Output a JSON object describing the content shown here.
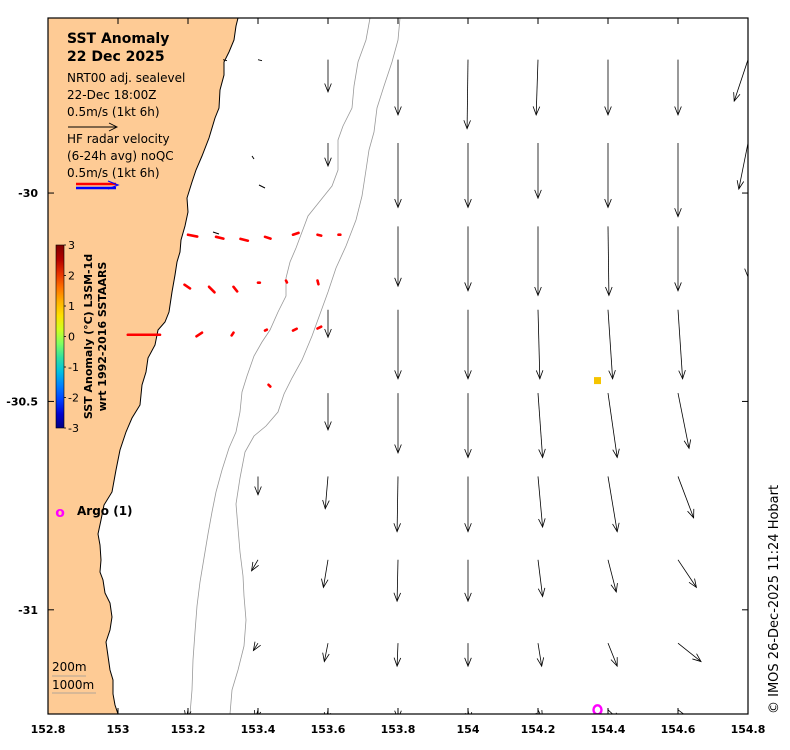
{
  "title": {
    "line1": "SST Anomaly",
    "line2": "22 Dec 2025"
  },
  "legend": {
    "sealevel_title": "NRT00 adj. sealevel",
    "sealevel_time": "22-Dec 18:00Z",
    "sealevel_scale": "0.5m/s (1kt 6h)",
    "radar_title": "HF radar velocity",
    "radar_avg": "(6-24h avg) noQC",
    "radar_scale": "0.5m/s (1kt 6h)"
  },
  "colorbar": {
    "label_line1": "SST Anomaly (°C) L3SM-1d",
    "label_line2": "wrt 1992-2016 SSTAARS",
    "ticks": [
      "3",
      "2",
      "1",
      "0",
      "-1",
      "-2",
      "-3"
    ],
    "colors": [
      "#800000",
      "#b30000",
      "#e63000",
      "#ff7000",
      "#ffb000",
      "#ffe000",
      "#d0ff20",
      "#80ff60",
      "#30e0a0",
      "#00c0e0",
      "#0080ff",
      "#0040ff",
      "#0000d0",
      "#000080"
    ]
  },
  "argo": {
    "label": "Argo (1)"
  },
  "depth_legend": {
    "line1": "200m",
    "line2": "1000m"
  },
  "axes": {
    "x_ticks": [
      "152.8",
      "153",
      "153.2",
      "153.4",
      "153.6",
      "153.8",
      "154",
      "154.2",
      "154.4",
      "154.6",
      "154.8"
    ],
    "y_ticks": [
      "-30",
      "-30.5",
      "-31"
    ]
  },
  "credit": "© IMOS 26-Dec-2025 11:24 Hobart",
  "colors": {
    "land": "#fecb95",
    "arrow": "#000000",
    "radar": "#ff0000",
    "argo": "#ff00ff",
    "sst_point": "#f5c400",
    "contour": "#999999"
  },
  "chart_data": {
    "type": "vector-map",
    "xlim": [
      152.8,
      154.8
    ],
    "ylim": [
      -31.25,
      -29.58
    ],
    "sealevel_vectors": [
      {
        "lon": 153.3,
        "lat": -29.68,
        "u": 0.0,
        "v": 0.0
      },
      {
        "lon": 153.4,
        "lat": -29.68,
        "u": 0.0,
        "v": 0.0
      },
      {
        "lon": 153.6,
        "lat": -29.68,
        "u": 0.0,
        "v": -0.35
      },
      {
        "lon": 153.8,
        "lat": -29.68,
        "u": 0.0,
        "v": -0.6
      },
      {
        "lon": 154.0,
        "lat": -29.68,
        "u": -0.01,
        "v": -0.75
      },
      {
        "lon": 154.2,
        "lat": -29.68,
        "u": -0.02,
        "v": -0.6
      },
      {
        "lon": 154.4,
        "lat": -29.68,
        "u": 0.0,
        "v": -0.6
      },
      {
        "lon": 154.6,
        "lat": -29.68,
        "u": 0.0,
        "v": -0.6
      },
      {
        "lon": 154.8,
        "lat": -29.68,
        "u": -0.15,
        "v": -0.45
      },
      {
        "lon": 153.6,
        "lat": -29.88,
        "u": 0.0,
        "v": -0.25
      },
      {
        "lon": 153.8,
        "lat": -29.88,
        "u": 0.0,
        "v": -0.7
      },
      {
        "lon": 154.0,
        "lat": -29.88,
        "u": 0.0,
        "v": -0.7
      },
      {
        "lon": 154.2,
        "lat": -29.88,
        "u": 0.0,
        "v": -0.6
      },
      {
        "lon": 154.4,
        "lat": -29.88,
        "u": 0.0,
        "v": -0.7
      },
      {
        "lon": 154.6,
        "lat": -29.88,
        "u": 0.0,
        "v": -0.8
      },
      {
        "lon": 154.8,
        "lat": -29.88,
        "u": -0.1,
        "v": -0.5
      },
      {
        "lon": 153.8,
        "lat": -30.08,
        "u": 0.0,
        "v": -0.65
      },
      {
        "lon": 154.0,
        "lat": -30.08,
        "u": 0.0,
        "v": -0.7
      },
      {
        "lon": 154.2,
        "lat": -30.08,
        "u": 0.0,
        "v": -0.75
      },
      {
        "lon": 154.4,
        "lat": -30.08,
        "u": 0.01,
        "v": -0.75
      },
      {
        "lon": 154.6,
        "lat": -30.08,
        "u": 0.0,
        "v": -0.7
      },
      {
        "lon": 154.8,
        "lat": -30.08,
        "u": 0.0,
        "v": -0.55
      },
      {
        "lon": 153.6,
        "lat": -30.28,
        "u": 0.0,
        "v": -0.3
      },
      {
        "lon": 153.8,
        "lat": -30.28,
        "u": 0.0,
        "v": -0.75
      },
      {
        "lon": 154.0,
        "lat": -30.28,
        "u": 0.0,
        "v": -0.75
      },
      {
        "lon": 154.2,
        "lat": -30.28,
        "u": 0.02,
        "v": -0.75
      },
      {
        "lon": 154.4,
        "lat": -30.28,
        "u": 0.05,
        "v": -0.75
      },
      {
        "lon": 154.6,
        "lat": -30.28,
        "u": 0.05,
        "v": -0.75
      },
      {
        "lon": 153.6,
        "lat": -30.48,
        "u": 0.0,
        "v": -0.4
      },
      {
        "lon": 153.8,
        "lat": -30.48,
        "u": 0.0,
        "v": -0.65
      },
      {
        "lon": 154.0,
        "lat": -30.48,
        "u": 0.0,
        "v": -0.7
      },
      {
        "lon": 154.2,
        "lat": -30.48,
        "u": 0.05,
        "v": -0.7
      },
      {
        "lon": 154.4,
        "lat": -30.48,
        "u": 0.1,
        "v": -0.7
      },
      {
        "lon": 154.6,
        "lat": -30.48,
        "u": 0.12,
        "v": -0.6
      },
      {
        "lon": 153.4,
        "lat": -30.68,
        "u": 0.0,
        "v": -0.2
      },
      {
        "lon": 153.6,
        "lat": -30.68,
        "u": -0.03,
        "v": -0.35
      },
      {
        "lon": 153.8,
        "lat": -30.68,
        "u": -0.01,
        "v": -0.6
      },
      {
        "lon": 154.0,
        "lat": -30.68,
        "u": 0.0,
        "v": -0.6
      },
      {
        "lon": 154.2,
        "lat": -30.68,
        "u": 0.05,
        "v": -0.55
      },
      {
        "lon": 154.4,
        "lat": -30.68,
        "u": 0.1,
        "v": -0.6
      },
      {
        "lon": 154.6,
        "lat": -30.68,
        "u": 0.17,
        "v": -0.45
      },
      {
        "lon": 153.4,
        "lat": -30.88,
        "u": -0.07,
        "v": -0.12
      },
      {
        "lon": 153.6,
        "lat": -30.88,
        "u": -0.05,
        "v": -0.3
      },
      {
        "lon": 153.8,
        "lat": -30.88,
        "u": -0.01,
        "v": -0.45
      },
      {
        "lon": 154.0,
        "lat": -30.88,
        "u": 0.0,
        "v": -0.45
      },
      {
        "lon": 154.2,
        "lat": -30.88,
        "u": 0.05,
        "v": -0.4
      },
      {
        "lon": 154.4,
        "lat": -30.88,
        "u": 0.09,
        "v": -0.35
      },
      {
        "lon": 154.6,
        "lat": -30.88,
        "u": 0.2,
        "v": -0.3
      },
      {
        "lon": 153.4,
        "lat": -31.08,
        "u": -0.05,
        "v": -0.08
      },
      {
        "lon": 153.6,
        "lat": -31.08,
        "u": -0.04,
        "v": -0.2
      },
      {
        "lon": 153.8,
        "lat": -31.08,
        "u": -0.01,
        "v": -0.25
      },
      {
        "lon": 154.0,
        "lat": -31.08,
        "u": 0.0,
        "v": -0.25
      },
      {
        "lon": 154.2,
        "lat": -31.08,
        "u": 0.04,
        "v": -0.25
      },
      {
        "lon": 154.4,
        "lat": -31.08,
        "u": 0.1,
        "v": -0.25
      },
      {
        "lon": 154.6,
        "lat": -31.08,
        "u": 0.25,
        "v": -0.2
      },
      {
        "lon": 153.2,
        "lat": -31.24,
        "u": -0.02,
        "v": -0.1
      },
      {
        "lon": 153.4,
        "lat": -31.24,
        "u": -0.03,
        "v": -0.1
      },
      {
        "lon": 153.6,
        "lat": -31.24,
        "u": -0.02,
        "v": -0.12
      },
      {
        "lon": 153.8,
        "lat": -31.24,
        "u": 0.0,
        "v": -0.1
      },
      {
        "lon": 154.0,
        "lat": -31.24,
        "u": 0.02,
        "v": -0.12
      },
      {
        "lon": 154.2,
        "lat": -31.24,
        "u": 0.05,
        "v": -0.1
      },
      {
        "lon": 154.4,
        "lat": -31.24,
        "u": 0.13,
        "v": -0.12
      },
      {
        "lon": 154.6,
        "lat": -31.24,
        "u": 0.2,
        "v": -0.15
      }
    ],
    "radar_vectors": [
      {
        "lon": 153.2,
        "lat": -30.1,
        "u": 0.1,
        "v": -0.02
      },
      {
        "lon": 153.28,
        "lat": -30.105,
        "u": 0.08,
        "v": -0.02
      },
      {
        "lon": 153.35,
        "lat": -30.11,
        "u": 0.08,
        "v": -0.02
      },
      {
        "lon": 153.42,
        "lat": -30.105,
        "u": 0.06,
        "v": -0.02
      },
      {
        "lon": 153.5,
        "lat": -30.1,
        "u": 0.06,
        "v": 0.02
      },
      {
        "lon": 153.57,
        "lat": -30.1,
        "u": 0.04,
        "v": -0.01
      },
      {
        "lon": 153.63,
        "lat": -30.1,
        "u": 0.02,
        "v": 0.0
      },
      {
        "lon": 153.19,
        "lat": -30.22,
        "u": 0.06,
        "v": -0.04
      },
      {
        "lon": 153.26,
        "lat": -30.225,
        "u": 0.06,
        "v": -0.06
      },
      {
        "lon": 153.33,
        "lat": -30.225,
        "u": 0.04,
        "v": -0.05
      },
      {
        "lon": 153.4,
        "lat": -30.215,
        "u": 0.02,
        "v": 0.0
      },
      {
        "lon": 153.48,
        "lat": -30.21,
        "u": 0.01,
        "v": -0.02
      },
      {
        "lon": 153.57,
        "lat": -30.21,
        "u": 0.01,
        "v": -0.04
      },
      {
        "lon": 153.12,
        "lat": -30.34,
        "u": -0.35,
        "v": 0.0
      },
      {
        "lon": 153.24,
        "lat": -30.335,
        "u": -0.06,
        "v": -0.04
      },
      {
        "lon": 153.33,
        "lat": -30.335,
        "u": -0.02,
        "v": -0.03
      },
      {
        "lon": 153.42,
        "lat": -30.33,
        "u": 0.02,
        "v": 0.01
      },
      {
        "lon": 153.5,
        "lat": -30.33,
        "u": 0.04,
        "v": 0.02
      },
      {
        "lon": 153.57,
        "lat": -30.325,
        "u": 0.04,
        "v": 0.02
      },
      {
        "lon": 153.43,
        "lat": -30.46,
        "u": 0.02,
        "v": -0.02
      }
    ],
    "argo_floats": [
      {
        "lon": 154.37,
        "lat": -31.24
      }
    ],
    "sst_points": [
      {
        "lon": 154.37,
        "lat": -30.45,
        "anomaly": 1.8
      }
    ]
  }
}
